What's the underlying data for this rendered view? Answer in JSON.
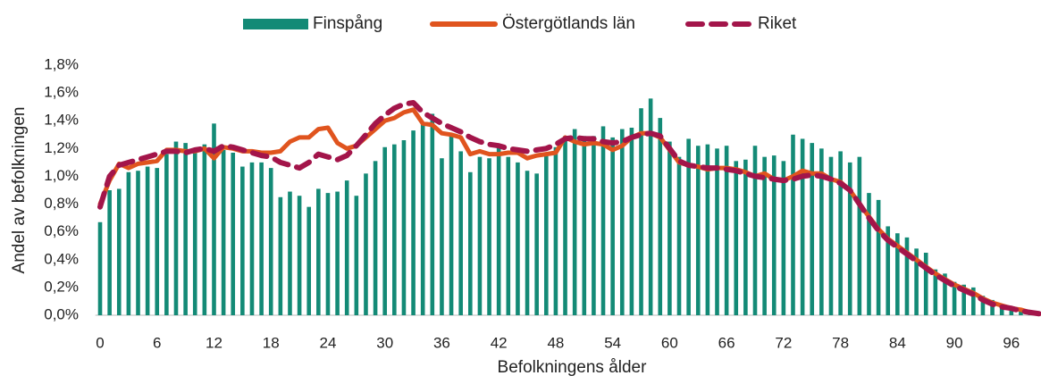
{
  "chart_data": {
    "type": "bar_line",
    "x_label": "Befolkningens ålder",
    "y_label": "Andel av befolkningen",
    "categories": [
      "0",
      null,
      null,
      null,
      null,
      null,
      "6",
      null,
      null,
      null,
      null,
      null,
      "12",
      null,
      null,
      null,
      null,
      null,
      "18",
      null,
      null,
      null,
      null,
      null,
      "24",
      null,
      null,
      null,
      null,
      null,
      "30",
      null,
      null,
      null,
      null,
      null,
      "36",
      null,
      null,
      null,
      null,
      null,
      "42",
      null,
      null,
      null,
      null,
      null,
      "48",
      null,
      null,
      null,
      null,
      null,
      "54",
      null,
      null,
      null,
      null,
      null,
      "60",
      null,
      null,
      null,
      null,
      null,
      "66",
      null,
      null,
      null,
      null,
      null,
      "72",
      null,
      null,
      null,
      null,
      null,
      "78",
      null,
      null,
      null,
      null,
      null,
      "84",
      null,
      null,
      null,
      null,
      null,
      "90",
      null,
      null,
      null,
      null,
      null,
      "96",
      null,
      null,
      null
    ],
    "series": [
      {
        "name": "Finspång",
        "type": "bar",
        "color": "#138a76",
        "values": [
          0.67,
          0.9,
          0.91,
          1.03,
          1.04,
          1.07,
          1.06,
          1.16,
          1.25,
          1.24,
          1.17,
          1.23,
          1.38,
          1.19,
          1.17,
          1.07,
          1.1,
          1.1,
          1.06,
          0.85,
          0.89,
          0.86,
          0.78,
          0.91,
          0.88,
          0.89,
          0.97,
          0.86,
          1.02,
          1.11,
          1.21,
          1.23,
          1.26,
          1.33,
          1.38,
          1.45,
          1.13,
          1.31,
          1.18,
          1.03,
          1.14,
          1.13,
          1.21,
          1.14,
          1.1,
          1.04,
          1.02,
          1.17,
          1.21,
          1.29,
          1.34,
          1.29,
          1.29,
          1.36,
          1.28,
          1.34,
          1.35,
          1.49,
          1.56,
          1.42,
          1.25,
          1.14,
          1.27,
          1.22,
          1.23,
          1.2,
          1.22,
          1.11,
          1.12,
          1.22,
          1.14,
          1.15,
          1.11,
          1.3,
          1.27,
          1.24,
          1.2,
          1.14,
          1.18,
          1.1,
          1.14,
          0.88,
          0.83,
          0.64,
          0.59,
          0.56,
          0.48,
          0.45,
          0.33,
          0.3,
          0.24,
          0.22,
          0.2,
          0.14,
          0.11,
          0.07,
          0.06,
          0.04,
          0.03,
          0.02
        ]
      },
      {
        "name": "Östergötlands län",
        "type": "line",
        "color": "#e0541e",
        "dash": false,
        "values": [
          0.8,
          0.97,
          1.09,
          1.06,
          1.09,
          1.1,
          1.11,
          1.19,
          1.19,
          1.18,
          1.18,
          1.2,
          1.13,
          1.21,
          1.2,
          1.18,
          1.18,
          1.17,
          1.17,
          1.18,
          1.25,
          1.28,
          1.28,
          1.34,
          1.35,
          1.24,
          1.2,
          1.22,
          1.28,
          1.34,
          1.4,
          1.42,
          1.46,
          1.48,
          1.38,
          1.37,
          1.31,
          1.3,
          1.28,
          1.16,
          1.18,
          1.16,
          1.16,
          1.17,
          1.17,
          1.13,
          1.15,
          1.16,
          1.17,
          1.28,
          1.25,
          1.23,
          1.24,
          1.23,
          1.19,
          1.22,
          1.28,
          1.31,
          1.31,
          1.28,
          1.19,
          1.1,
          1.08,
          1.07,
          1.05,
          1.06,
          1.06,
          1.05,
          1.03,
          1.0,
          1.02,
          0.98,
          0.97,
          1.0,
          1.04,
          1.02,
          1.02,
          0.98,
          0.96,
          0.9,
          0.8,
          0.71,
          0.62,
          0.55,
          0.5,
          0.45,
          0.4,
          0.35,
          0.3,
          0.26,
          0.22,
          0.19,
          0.16,
          0.12,
          0.09,
          0.07,
          0.05,
          0.04,
          0.02,
          0.01
        ]
      },
      {
        "name": "Riket",
        "type": "line",
        "color": "#a3154a",
        "dash": true,
        "values": [
          0.78,
          1.0,
          1.08,
          1.1,
          1.12,
          1.14,
          1.16,
          1.18,
          1.18,
          1.17,
          1.19,
          1.2,
          1.18,
          1.22,
          1.21,
          1.19,
          1.17,
          1.15,
          1.14,
          1.1,
          1.08,
          1.06,
          1.1,
          1.16,
          1.14,
          1.12,
          1.15,
          1.22,
          1.3,
          1.38,
          1.44,
          1.49,
          1.52,
          1.53,
          1.46,
          1.42,
          1.38,
          1.35,
          1.32,
          1.28,
          1.25,
          1.23,
          1.22,
          1.2,
          1.19,
          1.18,
          1.19,
          1.2,
          1.23,
          1.27,
          1.28,
          1.27,
          1.27,
          1.25,
          1.24,
          1.25,
          1.28,
          1.3,
          1.31,
          1.29,
          1.2,
          1.11,
          1.08,
          1.07,
          1.06,
          1.06,
          1.05,
          1.04,
          1.02,
          1.0,
          0.99,
          0.98,
          0.97,
          0.98,
          1.0,
          1.01,
          1.0,
          0.98,
          0.95,
          0.9,
          0.8,
          0.7,
          0.61,
          0.54,
          0.49,
          0.44,
          0.39,
          0.34,
          0.29,
          0.25,
          0.21,
          0.18,
          0.15,
          0.11,
          0.08,
          0.06,
          0.05,
          0.03,
          0.02,
          0.01
        ]
      }
    ],
    "ylim": [
      0,
      1.8
    ],
    "yticks": [
      {
        "value": 0,
        "label": "0,0%"
      },
      {
        "value": 0.2,
        "label": "0,2%"
      },
      {
        "value": 0.4,
        "label": "0,4%"
      },
      {
        "value": 0.6,
        "label": "0,6%"
      },
      {
        "value": 0.8,
        "label": "0,8%"
      },
      {
        "value": 1.0,
        "label": "1,0%"
      },
      {
        "value": 1.2,
        "label": "1,2%"
      },
      {
        "value": 1.4,
        "label": "1,4%"
      },
      {
        "value": 1.6,
        "label": "1,6%"
      },
      {
        "value": 1.8,
        "label": "1,8%"
      }
    ],
    "grid": false,
    "legend": "top"
  }
}
